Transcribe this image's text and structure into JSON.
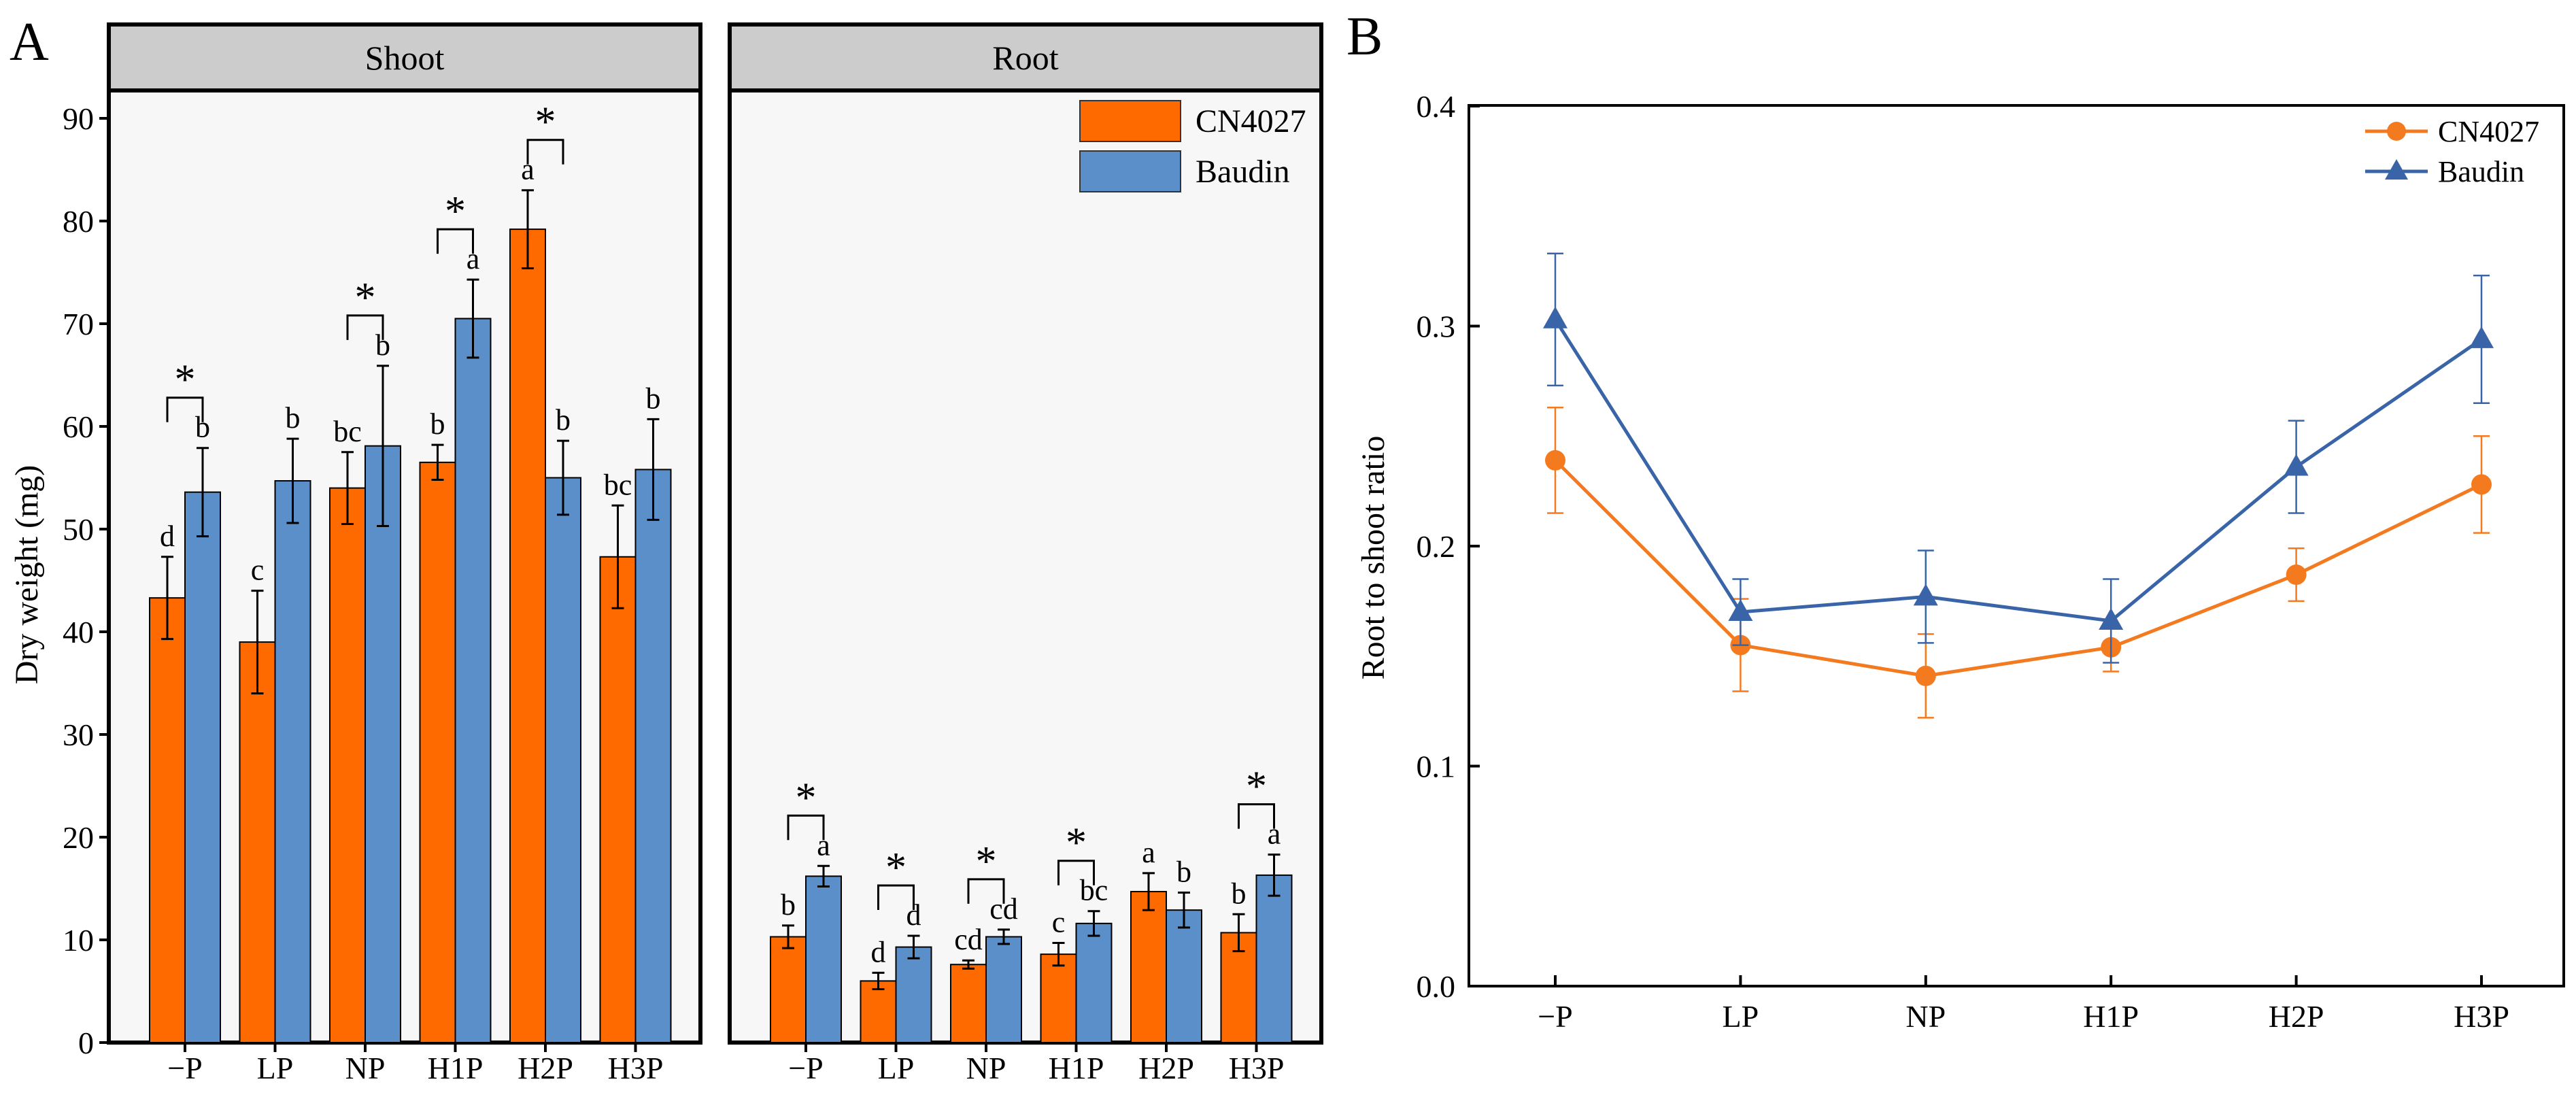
{
  "colors": {
    "cn4027": "#FF6A00",
    "baudin": "#5B8FC9",
    "panel_bg": "#F7F7F7",
    "strip_bg": "#CCCCCC",
    "line_orange": "#F47A20",
    "line_blue": "#3A64A8"
  },
  "panel_a": {
    "label": "A",
    "ylabel": "Dry weight (mg)",
    "yticks": [
      "0",
      "10",
      "20",
      "30",
      "40",
      "50",
      "60",
      "70",
      "80",
      "90"
    ],
    "star": "*",
    "legend": [
      "CN4027",
      "Baudin"
    ]
  },
  "panel_b": {
    "label": "B",
    "ylabel": "Root to shoot ratio",
    "yticks": [
      "0.0",
      "0.1",
      "0.2",
      "0.3",
      "0.4"
    ],
    "legend": [
      "CN4027",
      "Baudin"
    ]
  },
  "chart_data": [
    {
      "type": "bar",
      "facet": "Shoot",
      "categories": [
        "−P",
        "LP",
        "NP",
        "H1P",
        "H2P",
        "H3P"
      ],
      "ylim": [
        0,
        95
      ],
      "ylabel": "Dry weight (mg)",
      "series": [
        {
          "name": "CN4027",
          "values": [
            43.3,
            39.0,
            54.0,
            56.5,
            79.2,
            47.3
          ],
          "errors": [
            4.0,
            5.0,
            3.5,
            1.7,
            3.8,
            5.0
          ],
          "letters": [
            "d",
            "c",
            "bc",
            "b",
            "a",
            "bc"
          ]
        },
        {
          "name": "Baudin",
          "values": [
            53.6,
            54.7,
            58.1,
            70.5,
            55.0,
            55.8
          ],
          "errors": [
            4.3,
            4.1,
            7.8,
            3.8,
            3.6,
            4.9
          ],
          "letters": [
            "b",
            "b",
            "b",
            "a",
            "b",
            "b"
          ]
        }
      ],
      "significant": [
        true,
        false,
        true,
        true,
        true,
        false
      ]
    },
    {
      "type": "bar",
      "facet": "Root",
      "categories": [
        "−P",
        "LP",
        "NP",
        "H1P",
        "H2P",
        "H3P"
      ],
      "ylim": [
        0,
        95
      ],
      "series": [
        {
          "name": "CN4027",
          "values": [
            10.3,
            6.0,
            7.6,
            8.6,
            14.7,
            10.7
          ],
          "errors": [
            1.1,
            0.8,
            0.4,
            1.1,
            1.8,
            1.8
          ],
          "letters": [
            "b",
            "d",
            "cd",
            "c",
            "a",
            "b"
          ]
        },
        {
          "name": "Baudin",
          "values": [
            16.2,
            9.3,
            10.3,
            11.6,
            12.9,
            16.3
          ],
          "errors": [
            1.0,
            1.1,
            0.7,
            1.2,
            1.7,
            2.0
          ],
          "letters": [
            "a",
            "d",
            "cd",
            "bc",
            "b",
            "a"
          ]
        }
      ],
      "significant": [
        true,
        true,
        true,
        true,
        false,
        true
      ]
    },
    {
      "type": "line",
      "title": "",
      "categories": [
        "−P",
        "LP",
        "NP",
        "H1P",
        "H2P",
        "H3P"
      ],
      "ylim": [
        0,
        0.4
      ],
      "ylabel": "Root to shoot ratio",
      "series": [
        {
          "name": "CN4027",
          "values": [
            0.239,
            0.155,
            0.141,
            0.154,
            0.187,
            0.228
          ],
          "errors": [
            0.024,
            0.021,
            0.019,
            0.011,
            0.012,
            0.022
          ],
          "marker": "circle"
        },
        {
          "name": "Baudin",
          "values": [
            0.303,
            0.17,
            0.177,
            0.166,
            0.236,
            0.294
          ],
          "errors": [
            0.03,
            0.015,
            0.021,
            0.019,
            0.021,
            0.029
          ],
          "marker": "triangle"
        }
      ]
    }
  ]
}
